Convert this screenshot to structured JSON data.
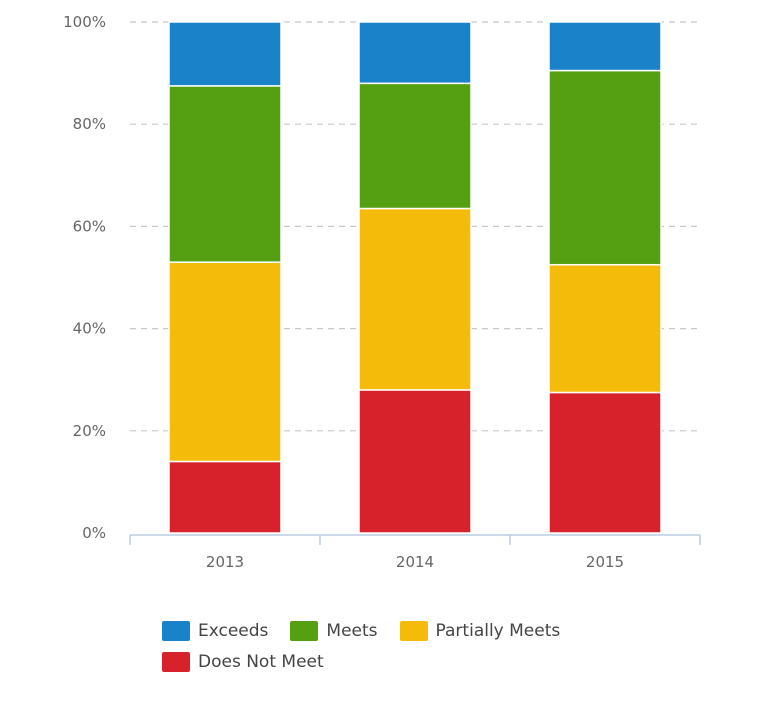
{
  "chart_data": {
    "type": "bar",
    "stacked": true,
    "normalized": true,
    "categories": [
      "2013",
      "2014",
      "2015"
    ],
    "series": [
      {
        "name": "Does Not Meet",
        "color": "#d8222b",
        "values": [
          14,
          28,
          27.5
        ]
      },
      {
        "name": "Partially Meets",
        "color": "#f5bb0b",
        "values": [
          39,
          35.5,
          25
        ]
      },
      {
        "name": "Meets",
        "color": "#54a012",
        "values": [
          34.5,
          24.5,
          38
        ]
      },
      {
        "name": "Exceeds",
        "color": "#1a82c8",
        "values": [
          12.5,
          12,
          9.5
        ]
      }
    ],
    "yticks": [
      "0%",
      "20%",
      "40%",
      "60%",
      "80%",
      "100%"
    ],
    "ylim": [
      0,
      100
    ],
    "grid": true,
    "legend_position": "bottom-left",
    "title": "",
    "xlabel": "",
    "ylabel": ""
  },
  "legend": [
    {
      "label": "Exceeds",
      "color": "#1a82c8"
    },
    {
      "label": "Meets",
      "color": "#54a012"
    },
    {
      "label": "Partially Meets",
      "color": "#f5bb0b"
    },
    {
      "label": "Does Not Meet",
      "color": "#d8222b"
    }
  ]
}
